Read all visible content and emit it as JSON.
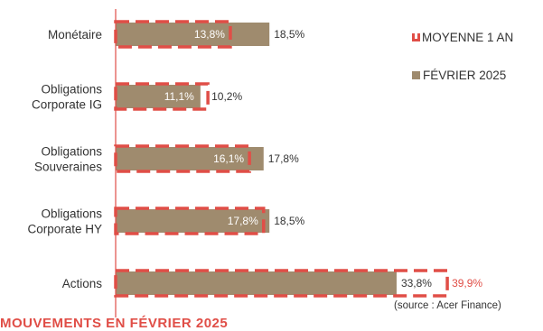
{
  "chart_data": {
    "type": "bar",
    "orientation": "horizontal",
    "categories": [
      [
        "Monétaire"
      ],
      [
        "Obligations",
        "Corporate IG"
      ],
      [
        "Obligations",
        "Souveraines"
      ],
      [
        "Obligations",
        "Corporate HY"
      ],
      [
        "Actions"
      ]
    ],
    "series": [
      {
        "name": "FÉVRIER 2025",
        "style": "solid",
        "color": "#9f8b6e",
        "values": [
          18.5,
          10.2,
          17.8,
          18.5,
          33.8
        ],
        "labels": [
          "18,5%",
          "10,2%",
          "17,8%",
          "18,5%",
          "33,8%"
        ]
      },
      {
        "name": "MOYENNE 1 AN",
        "style": "dashed-outline",
        "color": "#e04e47",
        "values": [
          13.8,
          11.1,
          16.1,
          17.8,
          39.9
        ],
        "labels": [
          "13,8%",
          "11,1%",
          "16,1%",
          "17,8%",
          "39,9%"
        ]
      }
    ],
    "xlim": [
      0,
      45
    ],
    "grid": false,
    "legend": "right"
  },
  "source": "(source : Acer Finance)",
  "clipped_title": "MOUVEMENTS EN FÉVRIER 2025"
}
